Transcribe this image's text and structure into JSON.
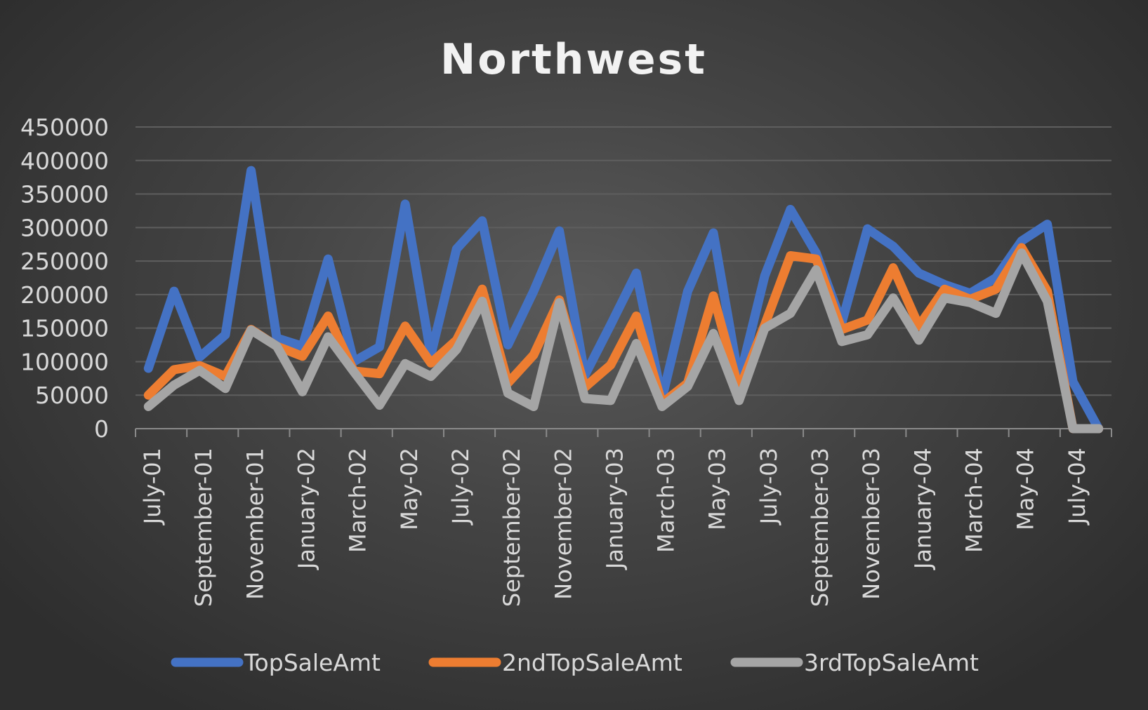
{
  "chart_data": {
    "type": "line",
    "title": "Northwest",
    "xlabel": "",
    "ylabel": "",
    "ylim": [
      0,
      450000
    ],
    "yticks": [
      0,
      50000,
      100000,
      150000,
      200000,
      250000,
      300000,
      350000,
      400000,
      450000
    ],
    "ytick_labels": [
      "0",
      "50000",
      "100000",
      "150000",
      "200000",
      "250000",
      "300000",
      "350000",
      "400000",
      "450000"
    ],
    "grid": true,
    "legend_position": "bottom",
    "categories": [
      "July-01",
      "August-01",
      "September-01",
      "October-01",
      "November-01",
      "December-01",
      "January-02",
      "February-02",
      "March-02",
      "April-02",
      "May-02",
      "June-02",
      "July-02",
      "August-02",
      "September-02",
      "October-02",
      "November-02",
      "December-02",
      "January-03",
      "February-03",
      "March-03",
      "April-03",
      "May-03",
      "June-03",
      "July-03",
      "August-03",
      "September-03",
      "October-03",
      "November-03",
      "December-03",
      "January-04",
      "February-04",
      "March-04",
      "April-04",
      "May-04",
      "June-04",
      "July-04",
      "August-04"
    ],
    "xtick_labels": [
      "July-01",
      "",
      "September-01",
      "",
      "November-01",
      "",
      "January-02",
      "",
      "March-02",
      "",
      "May-02",
      "",
      "July-02",
      "",
      "September-02",
      "",
      "November-02",
      "",
      "January-03",
      "",
      "March-03",
      "",
      "May-03",
      "",
      "July-03",
      "",
      "September-03",
      "",
      "November-03",
      "",
      "January-04",
      "",
      "March-04",
      "",
      "May-04",
      "",
      "July-04",
      ""
    ],
    "series": [
      {
        "name": "TopSaleAmt",
        "color": "#4472c4",
        "values": [
          90000,
          205000,
          107000,
          140000,
          385000,
          135000,
          123000,
          253000,
          100000,
          122000,
          335000,
          110000,
          268000,
          310000,
          125000,
          205000,
          295000,
          80000,
          155000,
          232000,
          45000,
          205000,
          292000,
          72000,
          228000,
          327000,
          262000,
          158000,
          298000,
          272000,
          232000,
          215000,
          202000,
          225000,
          280000,
          305000,
          70000,
          0
        ]
      },
      {
        "name": "2ndTopSaleAmt",
        "color": "#ed7d31",
        "values": [
          50000,
          88000,
          94000,
          78000,
          148000,
          123000,
          108000,
          168000,
          86000,
          82000,
          153000,
          98000,
          132000,
          208000,
          68000,
          110000,
          192000,
          62000,
          95000,
          168000,
          38000,
          68000,
          198000,
          58000,
          155000,
          258000,
          253000,
          148000,
          162000,
          240000,
          153000,
          208000,
          193000,
          208000,
          270000,
          205000,
          0,
          0
        ]
      },
      {
        "name": "3rdTopSaleAmt",
        "color": "#a5a5a5",
        "values": [
          33000,
          65000,
          87000,
          60000,
          147000,
          123000,
          55000,
          137000,
          85000,
          35000,
          97000,
          78000,
          118000,
          190000,
          53000,
          33000,
          188000,
          45000,
          42000,
          127000,
          33000,
          63000,
          142000,
          42000,
          150000,
          172000,
          237000,
          130000,
          140000,
          195000,
          132000,
          195000,
          188000,
          172000,
          262000,
          190000,
          0,
          0
        ]
      }
    ]
  }
}
